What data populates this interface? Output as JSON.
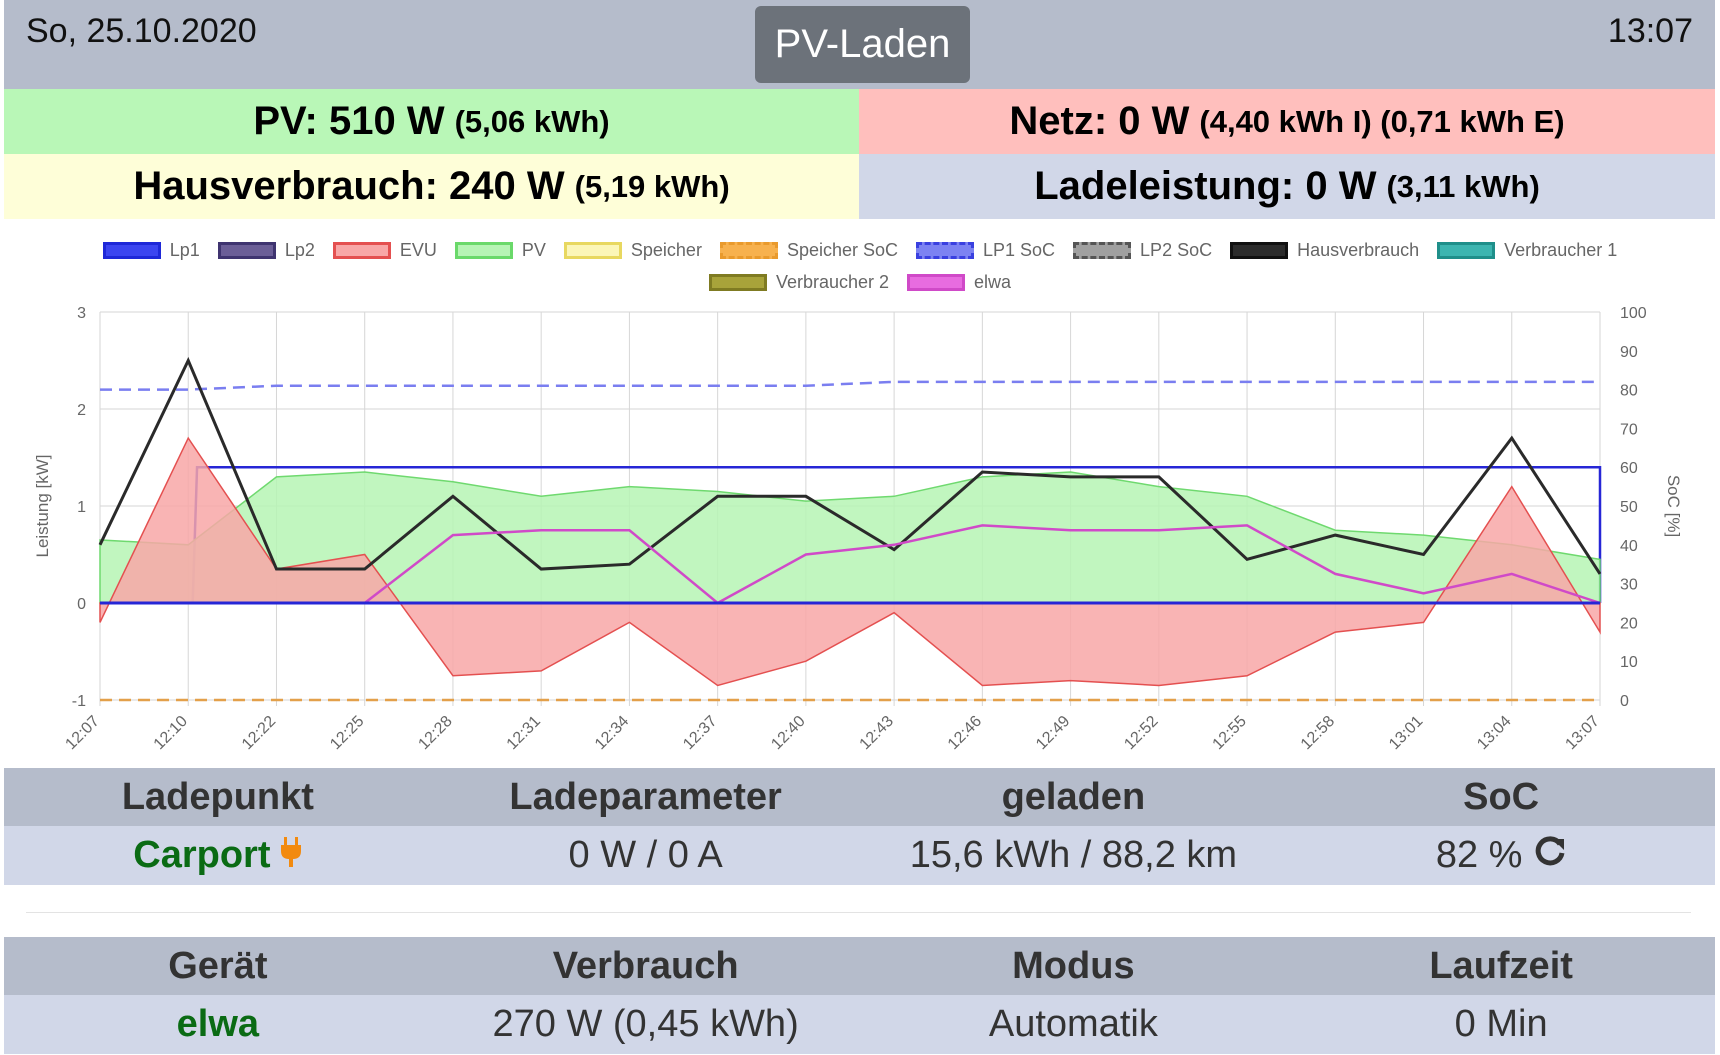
{
  "header": {
    "date": "So, 25.10.2020",
    "mode_label": "PV-Laden",
    "time": "13:07"
  },
  "tiles": {
    "pv": {
      "label": "PV: 510 W",
      "detail": "(5,06 kWh)",
      "color": "#b9f7b7"
    },
    "netz": {
      "label": "Netz: 0 W",
      "detail": "(4,40 kWh I) (0,71 kWh E)",
      "color": "#ffbfbd"
    },
    "haus": {
      "label": "Hausverbrauch: 240 W",
      "detail": "(5,19 kWh)",
      "color": "#fefed8"
    },
    "lade": {
      "label": "Ladeleistung: 0 W",
      "detail": "(3,11 kWh)",
      "color": "#d1d7e8"
    }
  },
  "legend": [
    {
      "name": "Lp1",
      "fill": "#3b45f0",
      "border": "#1e28d8"
    },
    {
      "name": "Lp2",
      "fill": "#6b5e97",
      "border": "#3f3470"
    },
    {
      "name": "EVU",
      "fill": "#f8a7a7",
      "border": "#e45050"
    },
    {
      "name": "PV",
      "fill": "#b6f4b4",
      "border": "#6ad96a"
    },
    {
      "name": "Speicher",
      "fill": "#fbf6b8",
      "border": "#e8d860"
    },
    {
      "name": "Speicher SoC",
      "fill": "#f7b14e",
      "border": "#e99a2d",
      "dashed": true
    },
    {
      "name": "LP1 SoC",
      "fill": "#7c82f2",
      "border": "#3a40e0",
      "dashed": true
    },
    {
      "name": "LP2 SoC",
      "fill": "#a0a0a0",
      "border": "#555555",
      "dashed": true
    },
    {
      "name": "Hausverbrauch",
      "fill": "#2c2c2c",
      "border": "#111111"
    },
    {
      "name": "Verbraucher 1",
      "fill": "#3cb5b0",
      "border": "#1f8f8a"
    },
    {
      "name": "Verbraucher 2",
      "fill": "#a8a33a",
      "border": "#7f7b22"
    },
    {
      "name": "elwa",
      "fill": "#e86ce0",
      "border": "#d04ac8"
    }
  ],
  "chart_data": {
    "type": "line",
    "ylabel": "Leistung [kW]",
    "y2label": "SoC [%]",
    "ylim": [
      -1,
      3
    ],
    "y2lim": [
      0,
      100
    ],
    "yticks": [
      "3",
      "2",
      "1",
      "0",
      "-1"
    ],
    "y2ticks": [
      "100",
      "90",
      "80",
      "70",
      "60",
      "50",
      "40",
      "30",
      "20",
      "10",
      "0"
    ],
    "xticks": [
      "12:07",
      "12:10",
      "12:22",
      "12:25",
      "12:28",
      "12:31",
      "12:34",
      "12:37",
      "12:40",
      "12:43",
      "12:46",
      "12:49",
      "12:52",
      "12:55",
      "12:58",
      "13:01",
      "13:04",
      "13:07"
    ],
    "grid": true,
    "series": [
      {
        "name": "Lp1",
        "type": "line",
        "color": "#2626d6",
        "x": [
          0,
          1.05,
          1.1,
          20,
          1000
        ],
        "values": [
          0,
          0,
          1.4,
          1.4,
          0
        ]
      },
      {
        "name": "LP1 SoC",
        "type": "dashed",
        "color": "#7a7ef0",
        "values": [
          80,
          80,
          81,
          81,
          81,
          81,
          81,
          81,
          81,
          82,
          82,
          82,
          82,
          82,
          82,
          82,
          82,
          82
        ]
      },
      {
        "name": "Speicher SoC",
        "type": "dashed",
        "color": "#e3a04a",
        "values": [
          0,
          0,
          0,
          0,
          0,
          0,
          0,
          0,
          0,
          0,
          0,
          0,
          0,
          0,
          0,
          0,
          0,
          0
        ]
      },
      {
        "name": "PV",
        "type": "area",
        "color": "#6fd96f",
        "fill": "#b6f4b4",
        "values": [
          0.65,
          0.6,
          1.3,
          1.35,
          1.25,
          1.1,
          1.2,
          1.15,
          1.05,
          1.1,
          1.3,
          1.35,
          1.2,
          1.1,
          0.75,
          0.7,
          0.6,
          0.45
        ]
      },
      {
        "name": "EVU",
        "type": "area",
        "color": "#e45050",
        "fill": "#f8a7a7",
        "values": [
          -0.2,
          1.7,
          0.35,
          0.5,
          -0.75,
          -0.7,
          -0.2,
          -0.85,
          -0.6,
          -0.1,
          -0.85,
          -0.8,
          -0.85,
          -0.75,
          -0.3,
          -0.2,
          1.2,
          -0.3
        ]
      },
      {
        "name": "Hausverbrauch",
        "type": "line",
        "color": "#2a2a2a",
        "values": [
          0.6,
          2.5,
          0.35,
          0.35,
          1.1,
          0.35,
          0.4,
          1.1,
          1.1,
          0.55,
          1.35,
          1.3,
          1.3,
          0.45,
          0.7,
          0.5,
          1.7,
          0.3
        ]
      },
      {
        "name": "elwa",
        "type": "line",
        "color": "#d04ac8",
        "values": [
          0,
          0,
          0,
          0,
          0.7,
          0.75,
          0.75,
          0,
          0.5,
          0.6,
          0.8,
          0.75,
          0.75,
          0.8,
          0.3,
          0.1,
          0.3,
          0
        ]
      }
    ]
  },
  "charge_table": {
    "headers": [
      "Ladepunkt",
      "Ladeparameter",
      "geladen",
      "SoC"
    ],
    "row": {
      "name": "Carport",
      "param": "0 W / 0 A",
      "charged": "15,6 kWh / 88,2 km",
      "soc": "82 %"
    }
  },
  "device_table": {
    "headers": [
      "Gerät",
      "Verbrauch",
      "Modus",
      "Laufzeit"
    ],
    "row": {
      "name": "elwa",
      "consumption": "270 W (0,45 kWh)",
      "mode": "Automatik",
      "runtime": "0 Min"
    }
  }
}
